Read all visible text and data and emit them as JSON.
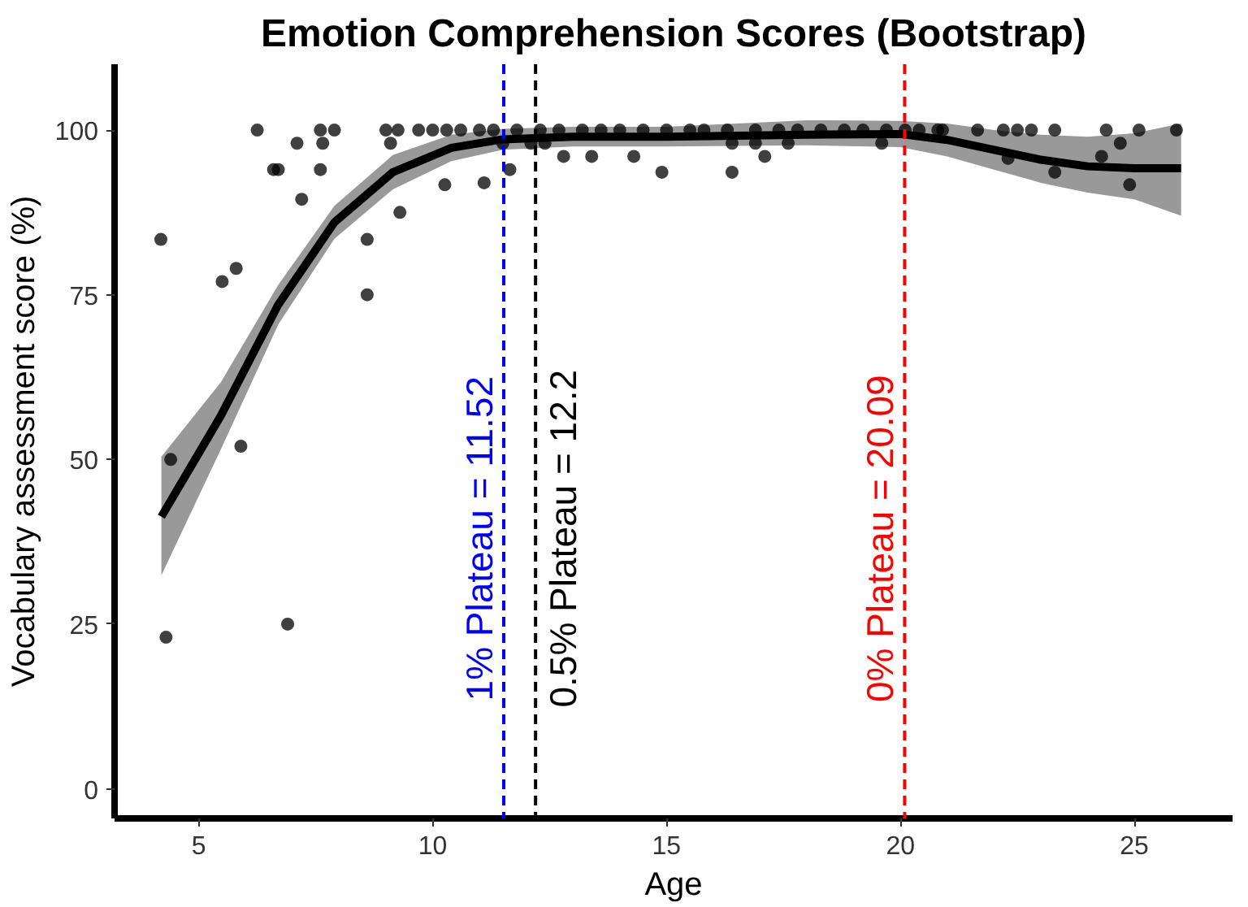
{
  "chart_data": {
    "type": "scatter",
    "title": "Emotion Comprehension Scores (Bootstrap)",
    "xlabel": "Age",
    "ylabel": "Vocabulary assessment score (%)",
    "xlim": [
      3.2,
      27.1
    ],
    "ylim": [
      -4.5,
      110
    ],
    "xticks": [
      5,
      10,
      15,
      20,
      25
    ],
    "yticks": [
      0,
      25,
      50,
      75,
      100
    ],
    "grid": false,
    "series": [
      {
        "color": "#000000",
        "marker": "circle",
        "x": [
          4.19,
          4.3,
          4.4,
          5.5,
          5.8,
          5.9,
          6.25,
          6.6,
          6.7,
          6.9,
          7.1,
          7.2,
          7.6,
          7.65,
          7.6,
          7.9,
          8.6,
          8.6,
          9.0,
          9.1,
          9.3,
          9.26,
          9.7,
          10.0,
          10.26,
          10.3,
          10.6,
          11.0,
          11.1,
          11.3,
          11.5,
          11.65,
          11.8,
          12.1,
          12.3,
          12.4,
          12.7,
          12.8,
          13.2,
          13.4,
          13.6,
          14.0,
          14.3,
          14.5,
          14.9,
          15.0,
          15.5,
          15.8,
          16.3,
          16.4,
          16.4,
          16.9,
          16.9,
          17.1,
          17.4,
          17.6,
          17.8,
          18.3,
          18.8,
          19.2,
          19.6,
          19.7,
          20.1,
          20.4,
          20.8,
          20.9,
          21.65,
          22.2,
          22.3,
          22.5,
          22.8,
          23.3,
          23.3,
          24.3,
          24.4,
          24.7,
          24.9,
          25.1,
          25.9
        ],
        "values": [
          83.4,
          23,
          50,
          77,
          79,
          52,
          100,
          94,
          94,
          25,
          98,
          89.5,
          100,
          98,
          94,
          100,
          83.4,
          75,
          100,
          98,
          87.5,
          100,
          100,
          100,
          91.7,
          100,
          100,
          100,
          92,
          100,
          98,
          94,
          100,
          98,
          100,
          98,
          100,
          96,
          100,
          96,
          100,
          100,
          96,
          100,
          93.6,
          100,
          100,
          100,
          100,
          93.6,
          98,
          98,
          100,
          96,
          100,
          98,
          100,
          100,
          100,
          100,
          98,
          100,
          100,
          100,
          100,
          100,
          100,
          100,
          95.7,
          100,
          100,
          100,
          93.6,
          96,
          100,
          98,
          91.7,
          100,
          100
        ]
      },
      {
        "type": "line",
        "marker": "none",
        "color": "#000000",
        "x": [
          4.2,
          5.47,
          6.7,
          7.9,
          9.15,
          10.4,
          11.5,
          13,
          15,
          18,
          20,
          21,
          22,
          23,
          24,
          25,
          26
        ],
        "values": [
          41.3,
          56.6,
          73.5,
          86,
          93.6,
          97.3,
          98.6,
          99,
          99,
          99.3,
          99.4,
          98.5,
          97,
          95.5,
          94.5,
          94.2,
          94.2
        ],
        "lower": [
          32.4,
          51.5,
          70.5,
          83.5,
          91,
          95.3,
          97,
          97.5,
          97.5,
          97.7,
          97.4,
          96,
          94,
          92,
          90.5,
          89.5,
          87
        ],
        "upper": [
          50.4,
          61.7,
          76.5,
          88.5,
          96.2,
          99.3,
          100.2,
          100.5,
          100.5,
          101.5,
          101.4,
          101,
          100,
          99.3,
          99,
          99.5,
          101
        ]
      }
    ],
    "ref_lines": [
      {
        "axis": "x",
        "value": 11.52,
        "label": "1% Plateau = 11.52",
        "color": "#0000ff",
        "line_style": "dashed"
      },
      {
        "axis": "x",
        "value": 12.2,
        "label": "0.5% Plateau = 12.2",
        "color": "#000000",
        "line_style": "dashed"
      },
      {
        "axis": "x",
        "value": 20.09,
        "label": "0% Plateau = 20.09",
        "color": "#ff0000",
        "line_style": "dashed"
      }
    ]
  }
}
